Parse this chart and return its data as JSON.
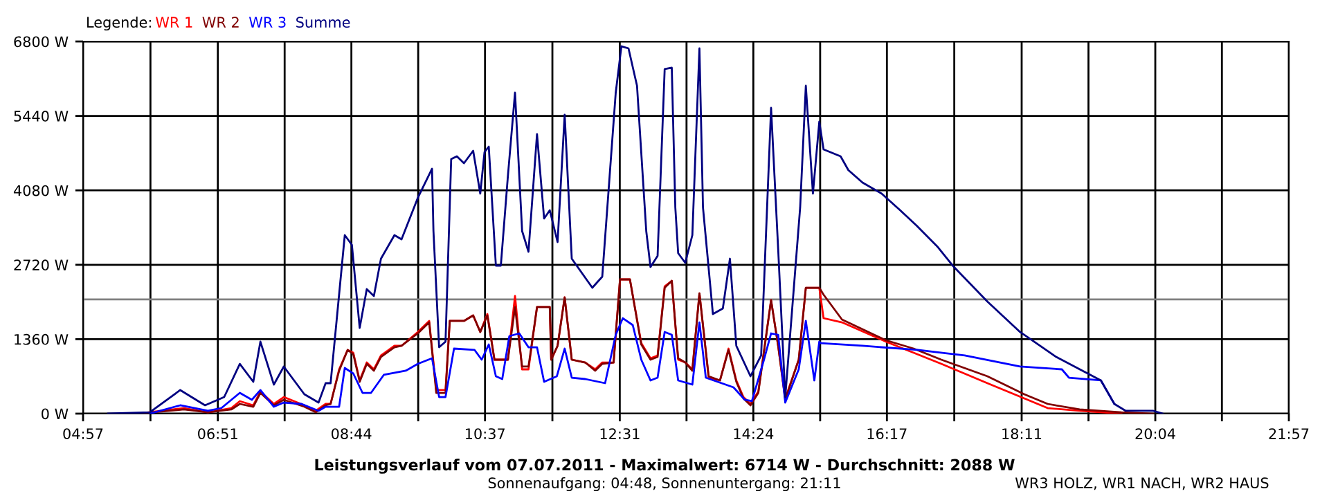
{
  "chart_data": {
    "type": "line",
    "title": "Leistungsverlauf vom 07.07.2011 - Maximalwert: 6714 W - Durchschnitt: 2088 W",
    "subtitle": "Sonnenaufgang: 04:48, Sonnenuntergang: 21:11",
    "legend_title": "Legende:",
    "legend": "top left",
    "grid": true,
    "line_style": "solid",
    "marker": "none",
    "annotations": [
      "WR3 HOLZ, WR1 NACH, WR2 HAUS"
    ],
    "xlim": [
      4.95,
      21.95
    ],
    "xticks": [
      {
        "value": 4.95,
        "label": "04:57"
      },
      {
        "value": 5.9,
        "label": null
      },
      {
        "value": 6.85,
        "label": "06:51"
      },
      {
        "value": 7.792,
        "label": null
      },
      {
        "value": 8.733,
        "label": "08:44"
      },
      {
        "value": 9.675,
        "label": null
      },
      {
        "value": 10.617,
        "label": "10:37"
      },
      {
        "value": 11.567,
        "label": null
      },
      {
        "value": 12.517,
        "label": "12:31"
      },
      {
        "value": 13.458,
        "label": null
      },
      {
        "value": 14.4,
        "label": "14:24"
      },
      {
        "value": 15.342,
        "label": null
      },
      {
        "value": 16.283,
        "label": "16:17"
      },
      {
        "value": 17.233,
        "label": null
      },
      {
        "value": 18.183,
        "label": "18:11"
      },
      {
        "value": 19.125,
        "label": null
      },
      {
        "value": 20.067,
        "label": "20:04"
      },
      {
        "value": 21.006,
        "label": null
      },
      {
        "value": 21.95,
        "label": "21:57"
      }
    ],
    "ylim": [
      0,
      6800
    ],
    "yticks": [
      {
        "value": 0,
        "label": "0 W"
      },
      {
        "value": 1360,
        "label": "1360 W"
      },
      {
        "value": 2720,
        "label": "2720 W"
      },
      {
        "value": 4080,
        "label": "4080 W"
      },
      {
        "value": 5440,
        "label": "5440 W"
      },
      {
        "value": 6800,
        "label": "6800 W"
      }
    ],
    "ref_lines": [
      {
        "axis": "y",
        "value": 2088,
        "color": "#808080"
      }
    ],
    "series": [
      {
        "name": "WR 1",
        "color": "#ff0000",
        "x": [
          5.73,
          6.37,
          6.71,
          7.04,
          7.16,
          7.35,
          7.45,
          7.64,
          7.78,
          8.07,
          8.23,
          8.37,
          8.44,
          8.56,
          8.68,
          8.76,
          8.85,
          8.95,
          9.05,
          9.15,
          9.34,
          9.44,
          9.67,
          9.83,
          9.93,
          10.06,
          10.12,
          10.32,
          10.45,
          10.55,
          10.65,
          10.75,
          10.94,
          11.04,
          11.14,
          11.23,
          11.35,
          11.53,
          11.55,
          11.64,
          11.74,
          11.84,
          12.03,
          12.17,
          12.27,
          12.43,
          12.52,
          12.66,
          12.82,
          12.95,
          13.05,
          13.15,
          13.25,
          13.34,
          13.44,
          13.54,
          13.64,
          13.77,
          13.93,
          14.05,
          14.16,
          14.26,
          14.36,
          14.47,
          14.65,
          14.75,
          14.85,
          15.04,
          15.14,
          15.33,
          15.39,
          15.65,
          16.27,
          16.66,
          17.05,
          17.7,
          18.22,
          18.55,
          19.0,
          19.59
        ],
        "values": [
          0,
          101,
          25,
          101,
          228,
          152,
          404,
          177,
          303,
          152,
          51,
          177,
          177,
          809,
          1163,
          1112,
          607,
          935,
          809,
          1062,
          1239,
          1239,
          1492,
          1694,
          430,
          430,
          1694,
          1694,
          1795,
          1492,
          1820,
          986,
          986,
          2149,
          809,
          809,
          1947,
          1947,
          986,
          1239,
          2124,
          986,
          935,
          809,
          935,
          935,
          2452,
          2452,
          1289,
          1011,
          1062,
          2326,
          2427,
          986,
          935,
          809,
          2199,
          657,
          607,
          1188,
          607,
          303,
          177,
          404,
          2073,
          1239,
          278,
          986,
          2300,
          2300,
          1744,
          1668,
          1315,
          1112,
          910,
          556,
          278,
          101,
          51,
          0
        ]
      },
      {
        "name": "WR 2",
        "color": "#800000",
        "x": [
          5.73,
          6.37,
          6.71,
          7.04,
          7.16,
          7.35,
          7.45,
          7.64,
          7.78,
          8.07,
          8.23,
          8.37,
          8.44,
          8.56,
          8.68,
          8.76,
          8.85,
          8.95,
          9.05,
          9.15,
          9.34,
          9.44,
          9.67,
          9.83,
          9.93,
          10.06,
          10.12,
          10.32,
          10.45,
          10.55,
          10.65,
          10.75,
          10.94,
          11.04,
          11.14,
          11.23,
          11.35,
          11.53,
          11.55,
          11.64,
          11.74,
          11.84,
          12.03,
          12.17,
          12.27,
          12.43,
          12.52,
          12.66,
          12.82,
          12.95,
          13.05,
          13.15,
          13.25,
          13.34,
          13.44,
          13.54,
          13.64,
          13.77,
          13.93,
          14.05,
          14.16,
          14.26,
          14.36,
          14.47,
          14.65,
          14.75,
          14.85,
          15.04,
          15.14,
          15.33,
          15.39,
          15.65,
          16.27,
          16.66,
          17.05,
          17.7,
          18.22,
          18.55,
          19.0,
          19.59,
          20.04
        ],
        "values": [
          0,
          76,
          25,
          76,
          177,
          126,
          379,
          152,
          253,
          126,
          25,
          152,
          177,
          784,
          1163,
          1087,
          581,
          910,
          784,
          1036,
          1213,
          1239,
          1466,
          1668,
          379,
          379,
          1694,
          1694,
          1795,
          1492,
          1795,
          986,
          986,
          1947,
          860,
          860,
          1947,
          1947,
          986,
          1239,
          2124,
          986,
          935,
          784,
          910,
          935,
          2452,
          2452,
          1264,
          986,
          1036,
          2300,
          2427,
          1011,
          935,
          784,
          2199,
          683,
          607,
          1163,
          581,
          278,
          152,
          379,
          2073,
          1239,
          253,
          986,
          2300,
          2300,
          2174,
          1719,
          1340,
          1188,
          986,
          683,
          354,
          177,
          76,
          25,
          0
        ]
      },
      {
        "name": "WR 3",
        "color": "#0000ff",
        "x": [
          5.89,
          6.32,
          6.71,
          6.9,
          7.16,
          7.33,
          7.45,
          7.64,
          7.78,
          8.03,
          8.27,
          8.37,
          8.56,
          8.64,
          8.76,
          8.89,
          9.01,
          9.19,
          9.5,
          9.67,
          9.87,
          9.97,
          10.06,
          10.18,
          10.47,
          10.57,
          10.67,
          10.77,
          10.86,
          10.96,
          11.1,
          11.23,
          11.35,
          11.45,
          11.63,
          11.74,
          11.84,
          12.03,
          12.31,
          12.46,
          12.56,
          12.7,
          12.82,
          12.95,
          13.05,
          13.15,
          13.25,
          13.34,
          13.54,
          13.64,
          13.73,
          14.12,
          14.28,
          14.38,
          14.55,
          14.65,
          14.75,
          14.85,
          15.04,
          15.14,
          15.26,
          15.33,
          15.35,
          15.94,
          16.72,
          17.38,
          18.16,
          18.75,
          18.85,
          19.3,
          19.49
        ],
        "values": [
          0,
          152,
          51,
          101,
          379,
          253,
          430,
          126,
          202,
          177,
          51,
          126,
          126,
          834,
          733,
          379,
          379,
          708,
          784,
          910,
          1011,
          303,
          303,
          1188,
          1163,
          986,
          1264,
          683,
          632,
          1416,
          1466,
          1213,
          1213,
          581,
          683,
          1188,
          657,
          632,
          556,
          1441,
          1744,
          1618,
          986,
          607,
          657,
          1492,
          1441,
          607,
          531,
          1668,
          657,
          480,
          253,
          228,
          986,
          1466,
          1441,
          202,
          809,
          1694,
          607,
          1315,
          1289,
          1239,
          1163,
          1062,
          860,
          809,
          657,
          607,
          177
        ]
      },
      {
        "name": "Summe",
        "color": "#000080",
        "x": [
          5.3,
          5.89,
          6.32,
          6.67,
          6.94,
          7.16,
          7.35,
          7.45,
          7.64,
          7.78,
          8.07,
          8.27,
          8.37,
          8.44,
          8.64,
          8.74,
          8.85,
          8.95,
          9.05,
          9.15,
          9.34,
          9.44,
          9.67,
          9.87,
          9.89,
          9.97,
          10.06,
          10.14,
          10.22,
          10.32,
          10.45,
          10.55,
          10.61,
          10.67,
          10.77,
          10.84,
          10.94,
          11.04,
          11.14,
          11.23,
          11.35,
          11.45,
          11.53,
          11.64,
          11.74,
          11.84,
          12.13,
          12.27,
          12.46,
          12.54,
          12.64,
          12.76,
          12.89,
          12.95,
          13.05,
          13.15,
          13.25,
          13.3,
          13.34,
          13.44,
          13.54,
          13.64,
          13.69,
          13.83,
          13.97,
          14.07,
          14.16,
          14.36,
          14.51,
          14.65,
          14.75,
          14.85,
          15.06,
          15.14,
          15.24,
          15.33,
          15.39,
          15.63,
          15.74,
          15.94,
          16.21,
          16.47,
          16.7,
          16.99,
          17.21,
          17.7,
          18.16,
          18.67,
          19.04,
          19.3,
          19.49,
          19.65,
          20.04,
          20.17
        ],
        "values": [
          0,
          25,
          430,
          152,
          303,
          909,
          581,
          1315,
          531,
          860,
          354,
          202,
          556,
          556,
          3261,
          3084,
          1567,
          2275,
          2149,
          2831,
          3261,
          3185,
          3944,
          4475,
          3337,
          1213,
          1315,
          4651,
          4702,
          4576,
          4803,
          4020,
          4778,
          4879,
          2705,
          2705,
          4348,
          5865,
          3337,
          2958,
          5107,
          3565,
          3716,
          3135,
          5461,
          2831,
          2300,
          2503,
          5865,
          6714,
          6674,
          5991,
          3337,
          2680,
          2882,
          6295,
          6320,
          3767,
          2932,
          2756,
          3261,
          6674,
          3767,
          1820,
          1921,
          2831,
          1239,
          683,
          1062,
          5587,
          3008,
          303,
          3767,
          5991,
          4020,
          5334,
          4828,
          4702,
          4449,
          4222,
          4020,
          3716,
          3438,
          3059,
          2705,
          2048,
          1492,
          1036,
          784,
          607,
          177,
          51,
          51,
          0
        ]
      }
    ]
  }
}
